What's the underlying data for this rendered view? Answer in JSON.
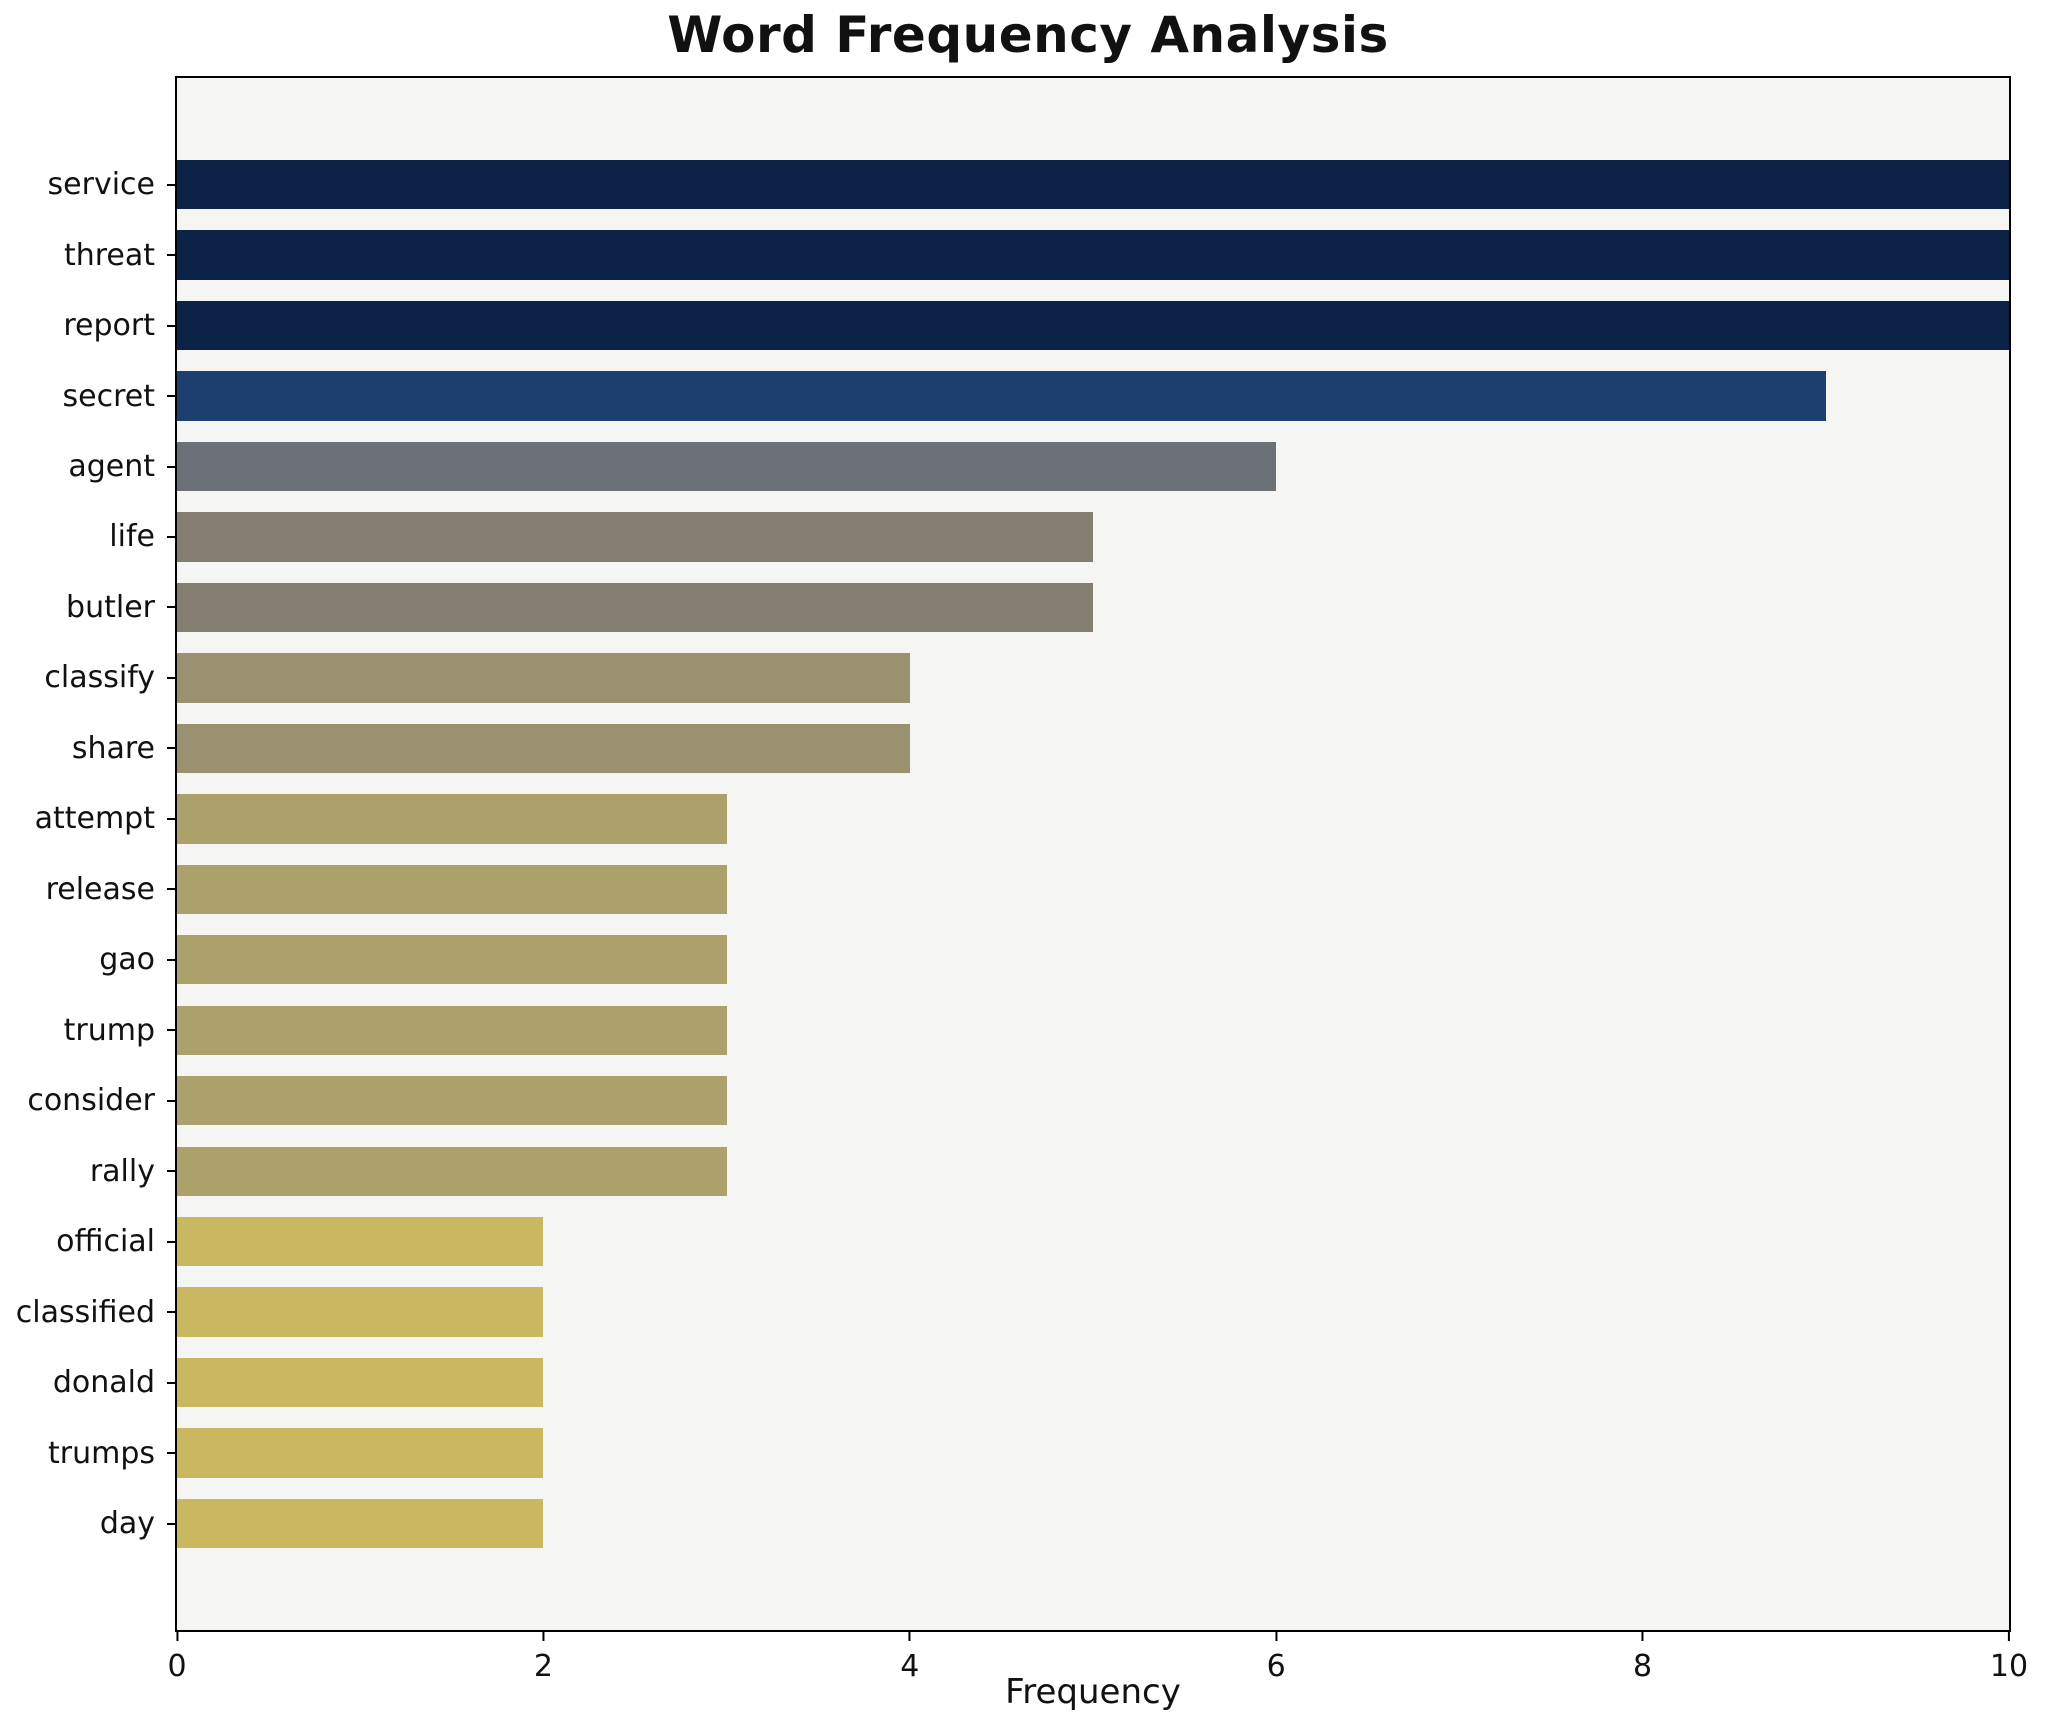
{
  "chart_data": {
    "type": "bar",
    "orientation": "horizontal",
    "title": "Word Frequency Analysis",
    "xlabel": "Frequency",
    "ylabel": "",
    "categories": [
      "service",
      "threat",
      "report",
      "secret",
      "agent",
      "life",
      "butler",
      "classify",
      "share",
      "attempt",
      "release",
      "gao",
      "trump",
      "consider",
      "rally",
      "official",
      "classified",
      "donald",
      "trumps",
      "day"
    ],
    "values": [
      10,
      10,
      10,
      9,
      6,
      5,
      5,
      4,
      4,
      3,
      3,
      3,
      3,
      3,
      3,
      2,
      2,
      2,
      2,
      2
    ],
    "xlim": [
      0,
      10
    ],
    "xticks": [
      0,
      2,
      4,
      6,
      8,
      10
    ],
    "grid": false,
    "legend": "none",
    "bar_colors": [
      "#0d2247",
      "#0d2247",
      "#0d2247",
      "#1c3f70",
      "#6c7077",
      "#847e70",
      "#847e70",
      "#9a9171",
      "#9a9171",
      "#aca16b",
      "#aca16b",
      "#aca16b",
      "#aca16b",
      "#aca16b",
      "#aca16b",
      "#c9b860",
      "#c9b860",
      "#c9b860",
      "#c9b860",
      "#c9b860"
    ],
    "colors": {
      "plot_background": "#f5f5f4",
      "figure_background": "#ffffff",
      "axis": "#000000",
      "text": "#111111"
    }
  }
}
